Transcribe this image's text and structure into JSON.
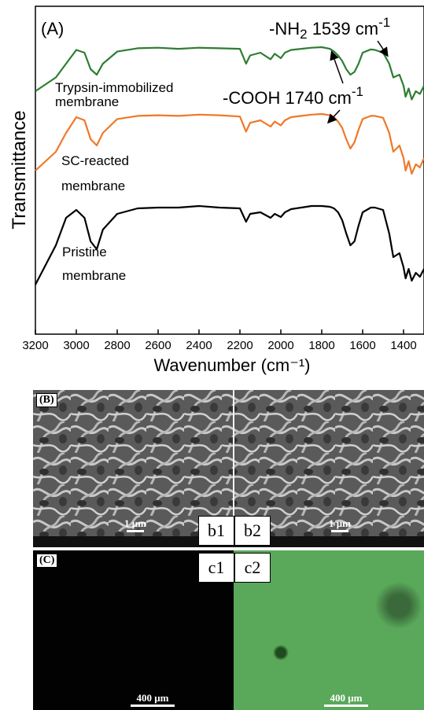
{
  "chart_data": {
    "type": "line",
    "panel_label": "(A)",
    "xlabel": "Wavenumber (cm⁻¹)",
    "ylabel": "Transmittance",
    "xlim": [
      3200,
      1300
    ],
    "x_ticks": [
      "3200",
      "3000",
      "2800",
      "2600",
      "2400",
      "2200",
      "2000",
      "1800",
      "1600",
      "1400"
    ],
    "series": [
      {
        "name": "Trypsin-immobilized membrane",
        "label_lines": [
          "Trypsin-immobilized",
          "membrane"
        ],
        "color": "#2e7d32",
        "x": [
          3200,
          3100,
          3050,
          3000,
          2960,
          2930,
          2900,
          2870,
          2800,
          2700,
          2600,
          2500,
          2400,
          2300,
          2200,
          2170,
          2150,
          2100,
          2050,
          2030,
          2000,
          1980,
          1950,
          1900,
          1850,
          1800,
          1760,
          1740,
          1720,
          1700,
          1680,
          1660,
          1640,
          1620,
          1600,
          1560,
          1540,
          1500,
          1470,
          1450,
          1420,
          1400,
          1390,
          1375,
          1360,
          1340,
          1320,
          1300
        ],
        "y": [
          0.2,
          0.45,
          0.7,
          0.95,
          0.9,
          0.6,
          0.5,
          0.7,
          0.92,
          0.98,
          0.99,
          0.97,
          0.99,
          0.98,
          0.97,
          0.7,
          0.85,
          0.9,
          0.78,
          0.88,
          0.8,
          0.9,
          0.95,
          0.97,
          0.99,
          1.0,
          0.97,
          0.92,
          0.85,
          0.75,
          0.6,
          0.5,
          0.55,
          0.7,
          0.9,
          0.96,
          0.95,
          0.9,
          0.7,
          0.45,
          0.5,
          0.3,
          0.1,
          0.25,
          0.05,
          0.2,
          0.15,
          0.3
        ]
      },
      {
        "name": "SC-reacted membrane",
        "label_lines": [
          "SC-reacted",
          "membrane"
        ],
        "color": "#f07828",
        "x": [
          3200,
          3100,
          3050,
          3000,
          2960,
          2930,
          2900,
          2870,
          2800,
          2700,
          2600,
          2500,
          2400,
          2300,
          2200,
          2170,
          2150,
          2100,
          2050,
          2030,
          2000,
          1980,
          1950,
          1900,
          1850,
          1800,
          1760,
          1740,
          1720,
          1700,
          1680,
          1660,
          1640,
          1620,
          1600,
          1560,
          1540,
          1500,
          1470,
          1450,
          1420,
          1400,
          1390,
          1375,
          1360,
          1340,
          1320,
          1300
        ],
        "y": [
          0.1,
          0.4,
          0.7,
          0.95,
          0.9,
          0.6,
          0.5,
          0.7,
          0.92,
          0.97,
          0.98,
          0.97,
          0.99,
          0.98,
          0.96,
          0.72,
          0.86,
          0.9,
          0.8,
          0.88,
          0.82,
          0.9,
          0.95,
          0.97,
          0.99,
          1.0,
          0.98,
          0.95,
          0.88,
          0.78,
          0.6,
          0.45,
          0.55,
          0.75,
          0.92,
          0.97,
          0.97,
          0.94,
          0.7,
          0.4,
          0.5,
          0.3,
          0.1,
          0.25,
          0.05,
          0.2,
          0.15,
          0.3
        ]
      },
      {
        "name": "Pristine membrane",
        "label_lines": [
          "Pristine",
          "membrane"
        ],
        "color": "#000000",
        "x": [
          3200,
          3100,
          3050,
          3000,
          2960,
          2930,
          2900,
          2870,
          2800,
          2700,
          2600,
          2500,
          2400,
          2300,
          2200,
          2170,
          2150,
          2100,
          2050,
          2030,
          2000,
          1980,
          1950,
          1900,
          1850,
          1800,
          1760,
          1740,
          1720,
          1700,
          1680,
          1660,
          1640,
          1620,
          1600,
          1560,
          1540,
          1500,
          1470,
          1450,
          1420,
          1400,
          1390,
          1375,
          1360,
          1340,
          1320,
          1300
        ],
        "y": [
          0.0,
          0.5,
          0.85,
          0.95,
          0.85,
          0.55,
          0.45,
          0.7,
          0.9,
          0.97,
          0.98,
          0.98,
          1.0,
          0.98,
          0.97,
          0.8,
          0.9,
          0.92,
          0.85,
          0.9,
          0.86,
          0.92,
          0.96,
          0.98,
          1.0,
          1.0,
          0.99,
          0.97,
          0.92,
          0.82,
          0.65,
          0.5,
          0.55,
          0.75,
          0.92,
          0.98,
          0.98,
          0.95,
          0.65,
          0.35,
          0.4,
          0.22,
          0.08,
          0.2,
          0.05,
          0.15,
          0.1,
          0.2
        ]
      }
    ],
    "annotations": [
      {
        "text_main": "-NH",
        "text_sub": "2",
        "text_after": " 1539 cm",
        "text_sup": "-1"
      },
      {
        "text_main": "-COOH 1740 cm",
        "text_sup": "-1"
      }
    ]
  },
  "panel_b": {
    "label": "(B)",
    "left_tag": "b1",
    "right_tag": "b2",
    "scale": "1 μm"
  },
  "panel_c": {
    "label": "(C)",
    "left_tag": "c1",
    "right_tag": "c2",
    "scale": "400 μm"
  }
}
